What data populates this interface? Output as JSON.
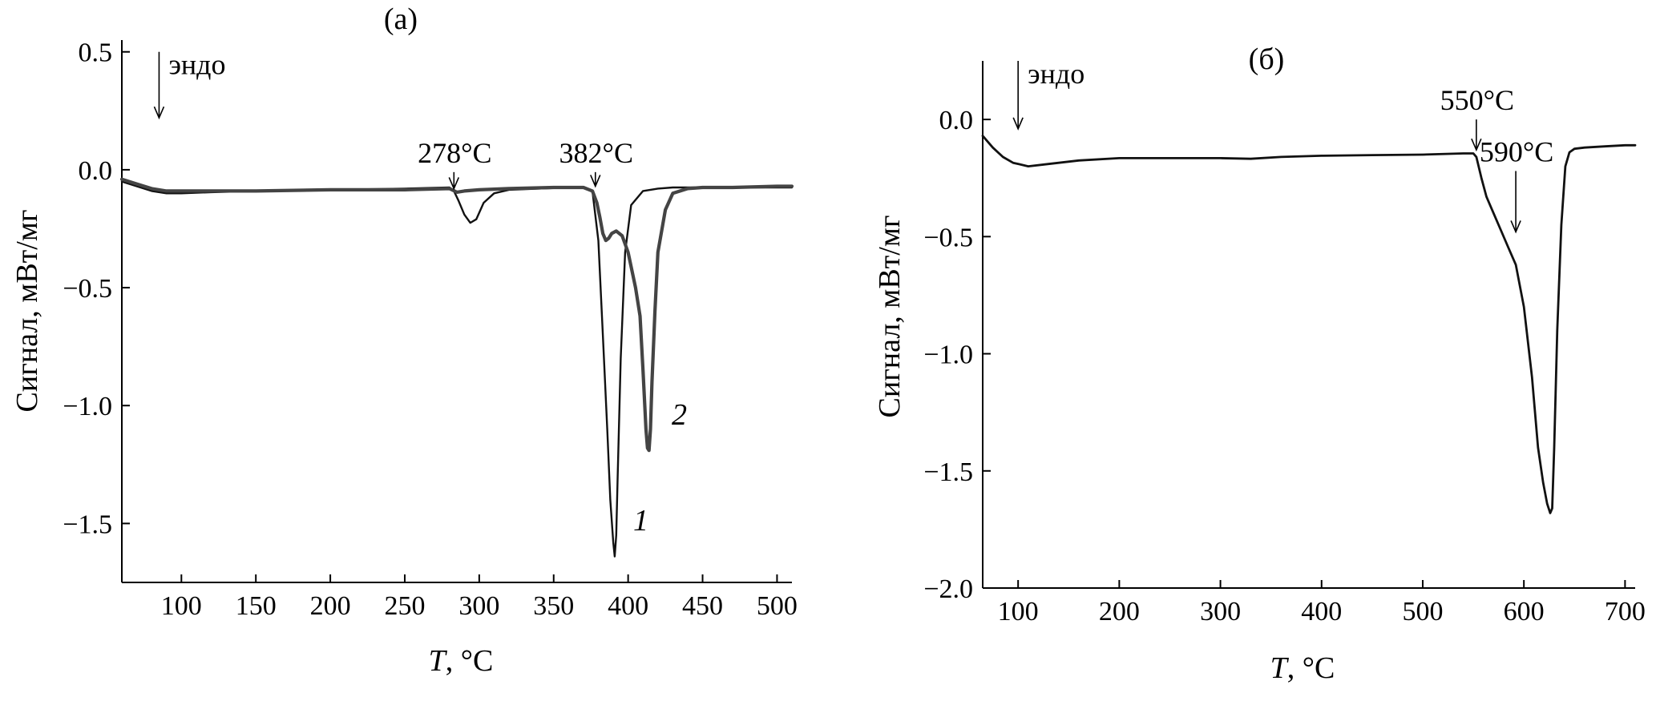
{
  "chart_data": [
    {
      "type": "line",
      "panel_label": "(а)",
      "xlabel_var": "T",
      "xlabel_unit": ", °C",
      "ylabel": "Сигнал, мВт/мг",
      "xlim": [
        60,
        510
      ],
      "ylim": [
        -1.75,
        0.55
      ],
      "xticks": [
        100,
        150,
        200,
        250,
        300,
        350,
        400,
        450,
        500
      ],
      "xtick_labels": [
        "100",
        "150",
        "200",
        "250",
        "300",
        "350",
        "400",
        "450",
        "500"
      ],
      "yticks": [
        0.5,
        0.0,
        -0.5,
        -1.0,
        -1.5
      ],
      "ytick_labels": [
        "0.5",
        "0.0",
        "−0.5",
        "−1.0",
        "−1.5"
      ],
      "grid": false,
      "annotations": [
        {
          "text": "эндо",
          "x": 85,
          "y_top": 0.5,
          "y_bottom": 0.22
        },
        {
          "text": "278°C",
          "x": 283,
          "y_top": -0.01,
          "y_bottom": -0.08
        },
        {
          "text": "382°C",
          "x": 378,
          "y_top": -0.01,
          "y_bottom": -0.07
        }
      ],
      "series": [
        {
          "name": "1",
          "color": "#111111",
          "width": 2.4,
          "x": [
            60,
            70,
            80,
            90,
            100,
            120,
            150,
            200,
            250,
            280,
            283,
            286,
            290,
            294,
            298,
            303,
            310,
            320,
            340,
            360,
            370,
            376,
            380,
            383,
            386,
            388,
            390,
            391,
            392,
            393,
            395,
            398,
            402,
            410,
            420,
            430,
            440,
            460,
            480,
            500,
            510
          ],
          "y": [
            -0.05,
            -0.07,
            -0.09,
            -0.1,
            -0.1,
            -0.095,
            -0.09,
            -0.085,
            -0.08,
            -0.075,
            -0.09,
            -0.13,
            -0.19,
            -0.225,
            -0.21,
            -0.14,
            -0.1,
            -0.085,
            -0.08,
            -0.075,
            -0.075,
            -0.09,
            -0.3,
            -0.7,
            -1.1,
            -1.4,
            -1.58,
            -1.64,
            -1.55,
            -1.3,
            -0.8,
            -0.35,
            -0.15,
            -0.09,
            -0.08,
            -0.075,
            -0.075,
            -0.075,
            -0.075,
            -0.075,
            -0.075
          ]
        },
        {
          "name": "2",
          "color": "#444444",
          "width": 4.2,
          "x": [
            60,
            70,
            80,
            90,
            100,
            120,
            150,
            200,
            250,
            280,
            285,
            290,
            300,
            320,
            350,
            370,
            376,
            379,
            381,
            383,
            385,
            387,
            389,
            392,
            396,
            400,
            405,
            408,
            410,
            412,
            413,
            414,
            415,
            416,
            418,
            420,
            425,
            430,
            440,
            450,
            470,
            500,
            510
          ],
          "y": [
            -0.04,
            -0.06,
            -0.08,
            -0.09,
            -0.09,
            -0.09,
            -0.09,
            -0.085,
            -0.085,
            -0.08,
            -0.095,
            -0.09,
            -0.085,
            -0.08,
            -0.075,
            -0.075,
            -0.09,
            -0.14,
            -0.2,
            -0.27,
            -0.3,
            -0.29,
            -0.27,
            -0.26,
            -0.28,
            -0.35,
            -0.5,
            -0.62,
            -0.85,
            -1.1,
            -1.18,
            -1.19,
            -1.1,
            -0.9,
            -0.6,
            -0.35,
            -0.17,
            -0.1,
            -0.08,
            -0.075,
            -0.075,
            -0.07,
            -0.07
          ]
        }
      ]
    },
    {
      "type": "line",
      "panel_label": "(б)",
      "xlabel_var": "T",
      "xlabel_unit": ", °C",
      "ylabel": "Сигнал, мВт/мг",
      "xlim": [
        65,
        710
      ],
      "ylim": [
        -2.0,
        0.25
      ],
      "xticks": [
        100,
        200,
        300,
        400,
        500,
        600,
        700
      ],
      "xtick_labels": [
        "100",
        "200",
        "300",
        "400",
        "500",
        "600",
        "700"
      ],
      "yticks": [
        0.0,
        -0.5,
        -1.0,
        -1.5,
        -2.0
      ],
      "ytick_labels": [
        "0.0",
        "−0.5",
        "−1.0",
        "−1.5",
        "−2.0"
      ],
      "grid": false,
      "annotations": [
        {
          "text": "эндо",
          "x": 100,
          "y_top": 0.25,
          "y_bottom": -0.04
        },
        {
          "text": "550°C",
          "x": 553,
          "y_top": 0.0,
          "y_bottom": -0.13
        },
        {
          "text": "590°C",
          "x": 592,
          "y_top": -0.22,
          "y_bottom": -0.48
        }
      ],
      "series": [
        {
          "name": "",
          "color": "#111111",
          "width": 2.8,
          "x": [
            65,
            75,
            85,
            95,
            110,
            130,
            160,
            200,
            250,
            300,
            330,
            360,
            400,
            450,
            500,
            540,
            550,
            553,
            558,
            563,
            570,
            578,
            585,
            592,
            600,
            608,
            614,
            619,
            623,
            626,
            628,
            630,
            633,
            637,
            641,
            645,
            650,
            660,
            680,
            700,
            710
          ],
          "y": [
            -0.07,
            -0.12,
            -0.16,
            -0.185,
            -0.2,
            -0.19,
            -0.175,
            -0.165,
            -0.165,
            -0.165,
            -0.168,
            -0.16,
            -0.155,
            -0.152,
            -0.15,
            -0.145,
            -0.145,
            -0.16,
            -0.25,
            -0.33,
            -0.4,
            -0.48,
            -0.55,
            -0.62,
            -0.8,
            -1.1,
            -1.4,
            -1.55,
            -1.64,
            -1.68,
            -1.66,
            -1.4,
            -0.9,
            -0.45,
            -0.2,
            -0.14,
            -0.125,
            -0.12,
            -0.115,
            -0.11,
            -0.11
          ]
        }
      ]
    }
  ]
}
